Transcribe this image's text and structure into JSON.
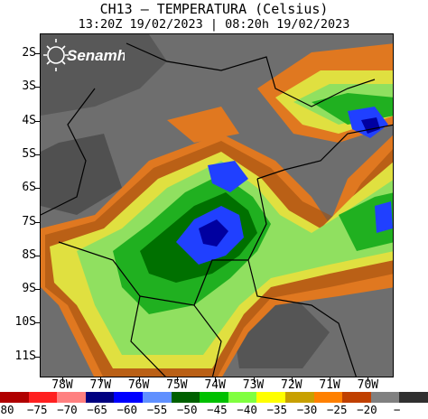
{
  "title_line1": "CH13 – TEMPERATURA (Celsius)",
  "title_line2": "13:20Z 19/02/2023 | 08:20h 19/02/2023",
  "logo_text": "Senamhi",
  "lat_labels": [
    "2S",
    "3S",
    "4S",
    "5S",
    "6S",
    "7S",
    "8S",
    "9S",
    "10S",
    "11S"
  ],
  "lon_labels": [
    "78W",
    "77W",
    "76W",
    "75W",
    "74W",
    "73W",
    "72W",
    "71W",
    "70W"
  ],
  "colorbar_labels": [
    "80",
    "−75",
    "−70",
    "−65",
    "−60",
    "−55",
    "−50",
    "−45",
    "−40",
    "−35",
    "−30",
    "−25",
    "−20",
    "−"
  ],
  "colorbar_colors": [
    "#b00000",
    "#ff2020",
    "#ff8080",
    "#000080",
    "#0000ff",
    "#6090ff",
    "#006000",
    "#00c000",
    "#80ff40",
    "#ffff00",
    "#c8a000",
    "#ff8000",
    "#c04000",
    "#808080",
    "#303030"
  ],
  "field_colors": {
    "gray": "#6e6e6e",
    "dark": "#3c3c3c",
    "orange": "#e07820",
    "brown": "#a05010",
    "yellow": "#e0e040",
    "lightgreen": "#90e060",
    "green": "#20b020",
    "darkgreen": "#007000",
    "blue": "#2040ff",
    "navy": "#0000a0"
  }
}
